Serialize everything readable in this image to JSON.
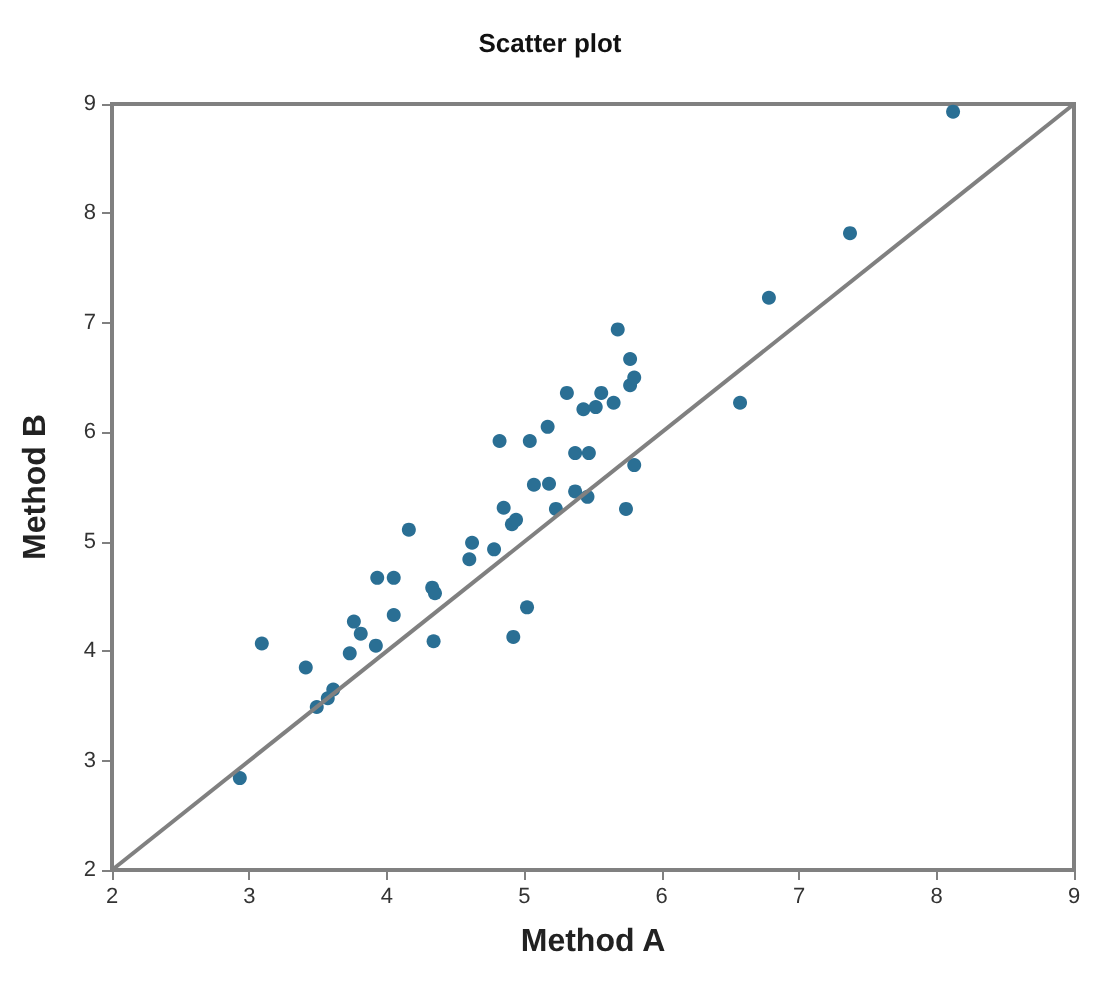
{
  "chart_data": {
    "type": "scatter",
    "title": "Scatter plot",
    "xlabel": "Method A",
    "ylabel": "Method B",
    "xlim": [
      2,
      9
    ],
    "ylim": [
      2,
      9
    ],
    "xticks": [
      2,
      3,
      4,
      5,
      6,
      7,
      8,
      9
    ],
    "yticks": [
      2,
      3,
      4,
      5,
      6,
      7,
      8,
      9
    ],
    "grid": false,
    "marker": "circle",
    "series": [
      {
        "color": "#2a6f94",
        "x": [
          2.93,
          3.09,
          3.41,
          3.49,
          3.57,
          3.61,
          3.73,
          3.76,
          3.81,
          3.92,
          3.93,
          4.05,
          4.05,
          4.16,
          4.34,
          4.33,
          4.35,
          4.6,
          4.62,
          4.78,
          4.82,
          4.85,
          4.91,
          4.94,
          4.92,
          5.02,
          5.04,
          5.07,
          5.17,
          5.18,
          5.23,
          5.31,
          5.37,
          5.37,
          5.43,
          5.46,
          5.47,
          5.52,
          5.56,
          5.65,
          5.68,
          5.74,
          5.77,
          5.77,
          5.8,
          5.8,
          6.57,
          6.78,
          7.37,
          8.12
        ],
        "values": [
          2.84,
          4.07,
          3.85,
          3.49,
          3.57,
          3.65,
          3.98,
          4.27,
          4.16,
          4.05,
          4.67,
          4.67,
          4.33,
          5.11,
          4.09,
          4.58,
          4.53,
          4.84,
          4.99,
          4.93,
          5.92,
          5.31,
          5.16,
          5.2,
          4.13,
          4.4,
          5.92,
          5.52,
          6.05,
          5.53,
          5.3,
          6.36,
          5.81,
          5.46,
          6.21,
          5.41,
          5.81,
          6.23,
          6.36,
          6.27,
          6.94,
          5.3,
          6.67,
          6.43,
          6.5,
          5.7,
          6.27,
          7.23,
          7.82,
          8.93
        ]
      },
      {
        "type": "line",
        "color": "#808080",
        "x": [
          2,
          9
        ],
        "values": [
          2,
          9
        ],
        "marker": "none"
      }
    ]
  }
}
